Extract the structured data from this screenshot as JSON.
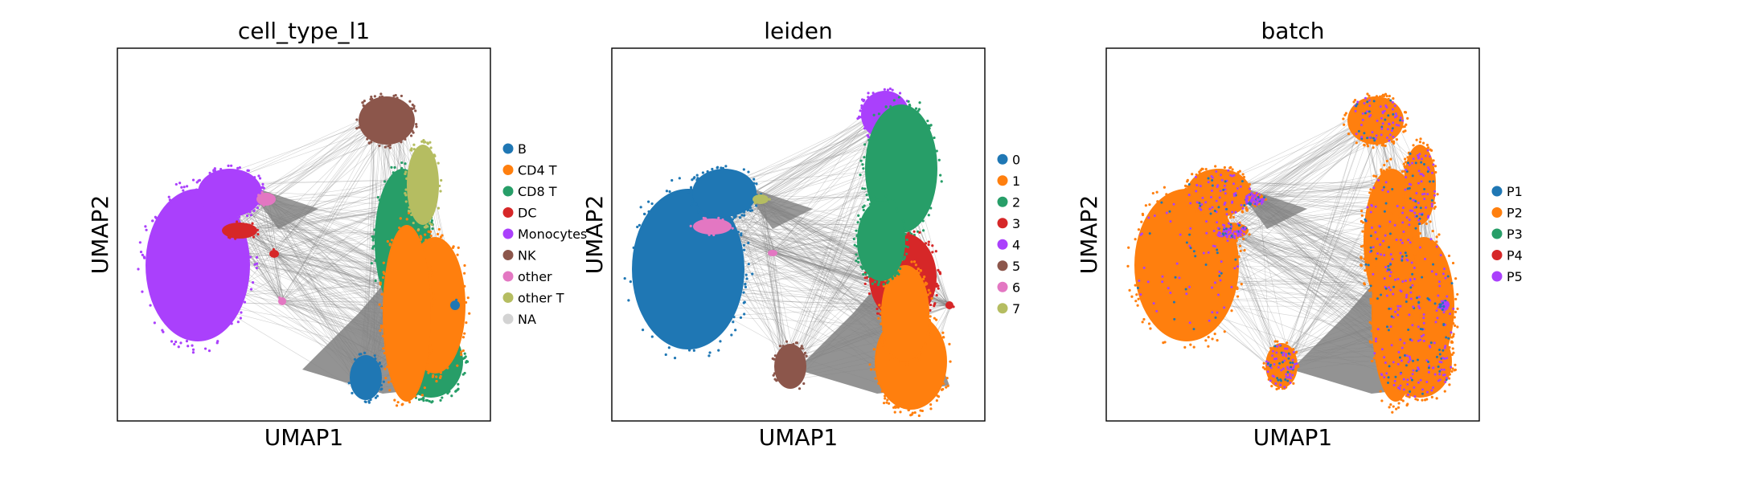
{
  "chart_data": [
    {
      "type": "scatter",
      "title": "cell_type_l1",
      "xlabel": "UMAP1",
      "ylabel": "UMAP2",
      "x_ticks": [],
      "y_ticks": [],
      "grid": false,
      "legend_position": "right",
      "series": [
        {
          "name": "B",
          "color": "#1f77b4"
        },
        {
          "name": "CD4 T",
          "color": "#ff7f0e"
        },
        {
          "name": "CD8 T",
          "color": "#279e68"
        },
        {
          "name": "DC",
          "color": "#d62728"
        },
        {
          "name": "Monocytes",
          "color": "#aa40fc"
        },
        {
          "name": "NK",
          "color": "#8c564b"
        },
        {
          "name": "other",
          "color": "#e377c2"
        },
        {
          "name": "other T",
          "color": "#b5bd61"
        },
        {
          "name": "NA",
          "color": "#d3d3d3"
        }
      ]
    },
    {
      "type": "scatter",
      "title": "leiden",
      "xlabel": "UMAP1",
      "ylabel": "UMAP2",
      "x_ticks": [],
      "y_ticks": [],
      "grid": false,
      "legend_position": "right",
      "series": [
        {
          "name": "0",
          "color": "#1f77b4"
        },
        {
          "name": "1",
          "color": "#ff7f0e"
        },
        {
          "name": "2",
          "color": "#279e68"
        },
        {
          "name": "3",
          "color": "#d62728"
        },
        {
          "name": "4",
          "color": "#aa40fc"
        },
        {
          "name": "5",
          "color": "#8c564b"
        },
        {
          "name": "6",
          "color": "#e377c2"
        },
        {
          "name": "7",
          "color": "#b5bd61"
        }
      ]
    },
    {
      "type": "scatter",
      "title": "batch",
      "xlabel": "UMAP1",
      "ylabel": "UMAP2",
      "x_ticks": [],
      "y_ticks": [],
      "grid": false,
      "legend_position": "right",
      "series": [
        {
          "name": "P1",
          "color": "#1f77b4"
        },
        {
          "name": "P2",
          "color": "#ff7f0e"
        },
        {
          "name": "P3",
          "color": "#279e68"
        },
        {
          "name": "P4",
          "color": "#d62728"
        },
        {
          "name": "P5",
          "color": "#aa40fc"
        }
      ]
    }
  ],
  "edge_color": "#808080"
}
